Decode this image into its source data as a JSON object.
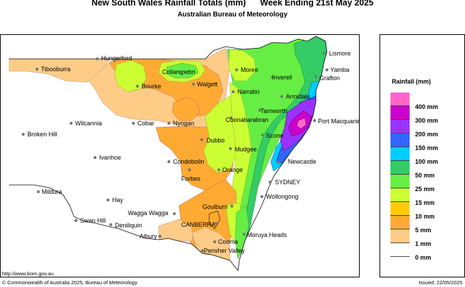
{
  "header": {
    "title": "New South Wales Rainfall Totals (mm)      Week Ending 21st May 2025",
    "subtitle": "Australian Bureau of Meteorology"
  },
  "legend": {
    "title": "Rainfall (mm)",
    "items": [
      {
        "label": "400 mm",
        "color": "#ff66cc"
      },
      {
        "label": "300 mm",
        "color": "#cc00cc"
      },
      {
        "label": "200 mm",
        "color": "#9933ff"
      },
      {
        "label": "150 mm",
        "color": "#3366ff"
      },
      {
        "label": "100 mm",
        "color": "#00ccff"
      },
      {
        "label": "50 mm",
        "color": "#33cc66"
      },
      {
        "label": "25 mm",
        "color": "#66ee44"
      },
      {
        "label": "15 mm",
        "color": "#ccff33"
      },
      {
        "label": "10 mm",
        "color": "#ffcc00"
      },
      {
        "label": "5 mm",
        "color": "#ffaa33"
      },
      {
        "label": "1 mm",
        "color": "#ffcc88"
      },
      {
        "label": "0 mm",
        "color": "#ffffff"
      }
    ]
  },
  "towns": {
    "hungerford": "Hungerford",
    "tibooburra": "Tibooburra",
    "bourke": "Bourke",
    "collarenebri": "Collarenebri",
    "walgett": "Walgett",
    "moree": "Moree",
    "inverell": "Inverell",
    "lismore": "Lismore",
    "yamba": "Yamba",
    "grafton": "Grafton",
    "narrabri": "Narrabri",
    "armidale": "Armidale",
    "tamworth": "Tamworth",
    "coonabarabran": "Coonabarabran",
    "port_macquarie": "Port Macquarie",
    "wilcannia": "Wilcannia",
    "cobar": "Cobar",
    "nyngan": "Nyngan",
    "broken_hill": "Broken Hill",
    "dubbo": "Dubbo",
    "scone": "Scone",
    "mudgee": "Mudgee",
    "ivanhoe": "Ivanhoe",
    "condobolin": "Condobolin",
    "newcastle": "Newcastle",
    "orange": "Orange",
    "forbes": "Forbes",
    "sydney": "SYDNEY",
    "mildura": "Mildura",
    "wollongong": "Wollongong",
    "hay": "Hay",
    "goulburn": "Goulburn",
    "wagga": "Wagga Wagga",
    "swan_hill": "Swan Hill",
    "deniliquin": "Deniliquin",
    "canberra": "CANBERRA",
    "moruya": "Moruya Heads",
    "albury": "Albury",
    "cooma": "Cooma",
    "perisher": "Perisher Valley"
  },
  "footer": {
    "url": "http://www.bom.gov.au",
    "copyright": "© Commonwealth of Australia 2025, Bureau of Meteorology",
    "issued": "Issued: 22/05/2025"
  }
}
